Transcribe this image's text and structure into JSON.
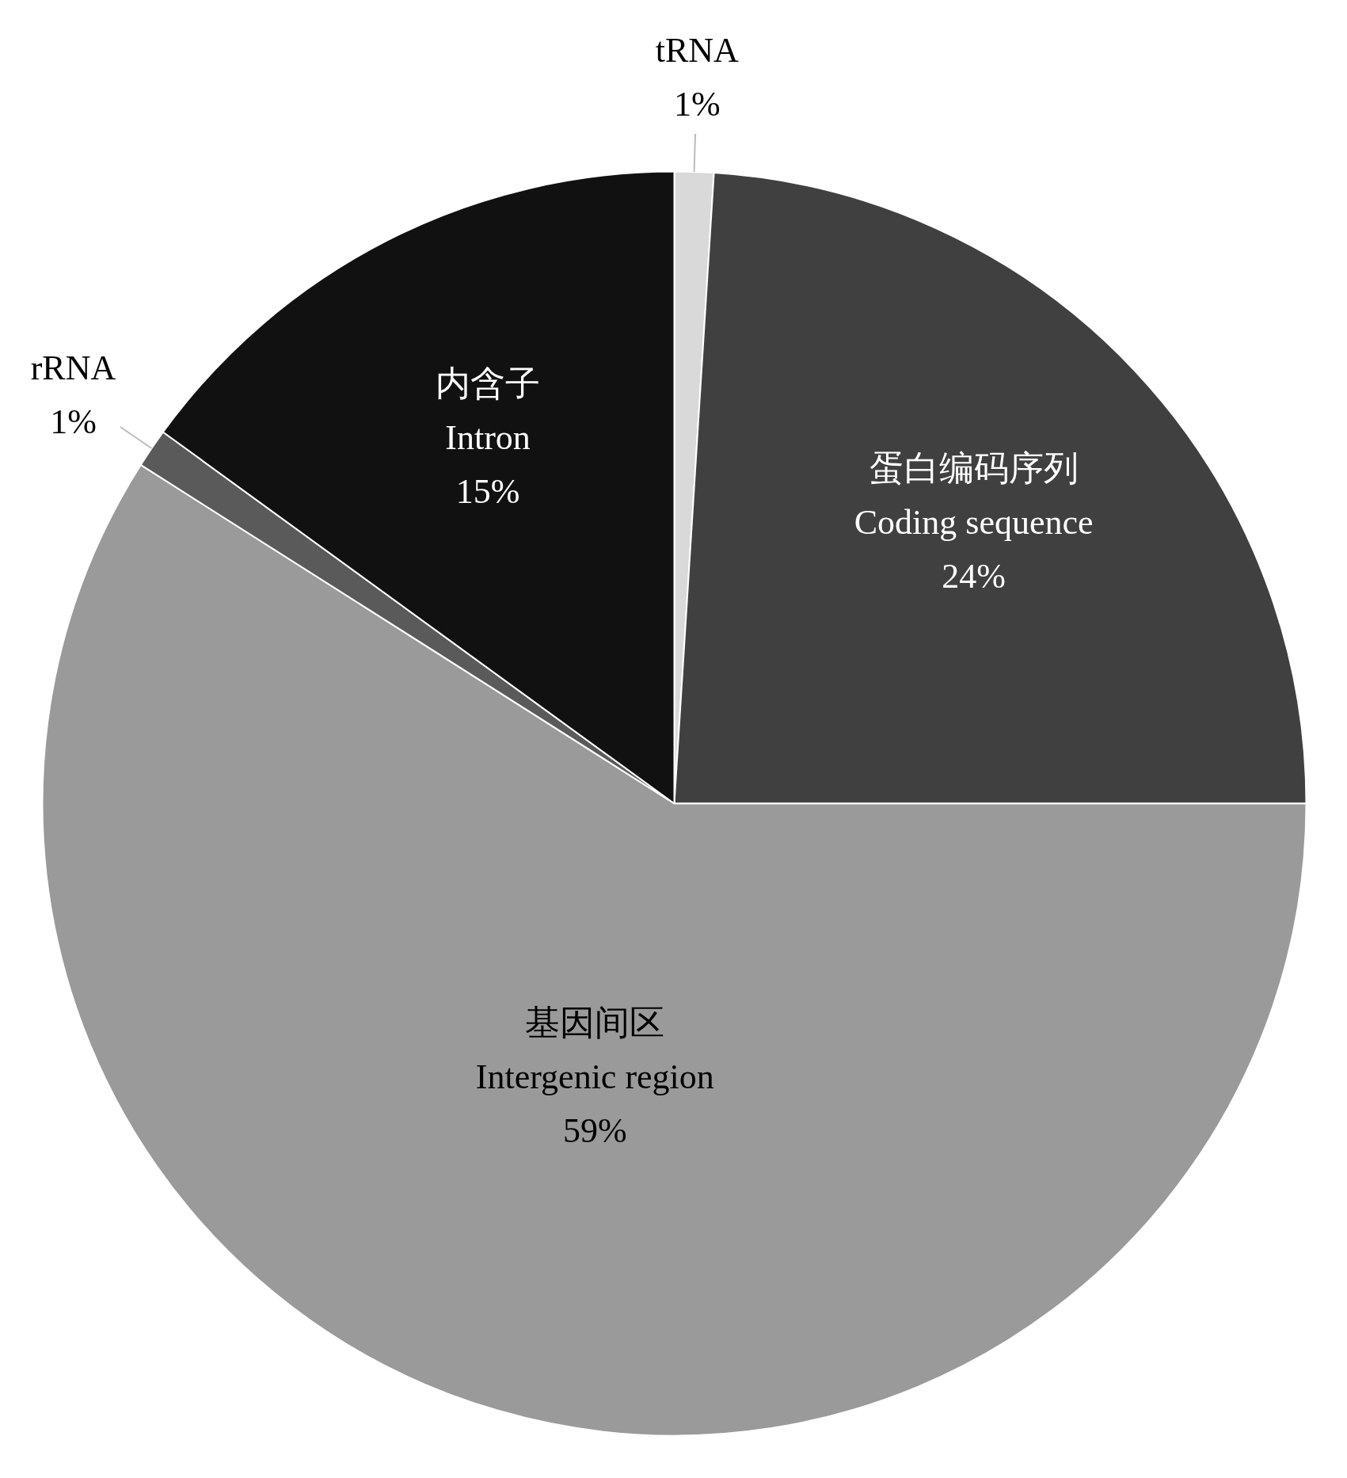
{
  "chart_data": {
    "type": "pie",
    "categories": [
      "tRNA",
      "蛋白编码序列\nCoding sequence",
      "基因间区\nIntergenic region",
      "rRNA",
      "内含子\nIntron"
    ],
    "values": [
      1,
      24,
      59,
      1,
      15
    ],
    "value_labels": [
      "1%",
      "24%",
      "59%",
      "1%",
      "15%"
    ],
    "colors": [
      "#d9d9d9",
      "#404040",
      "#9a9a9a",
      "#5a5a5a",
      "#111111"
    ]
  }
}
